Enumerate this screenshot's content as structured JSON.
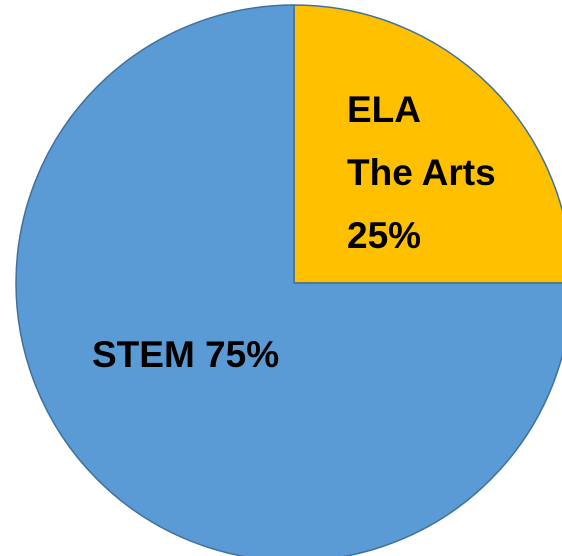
{
  "chart_data": {
    "type": "pie",
    "title": "",
    "slices": [
      {
        "name": "ELA The Arts",
        "value": 25,
        "label_lines": [
          "ELA",
          "The Arts",
          "25%"
        ],
        "color": "#FFC000"
      },
      {
        "name": "STEM",
        "value": 75,
        "label_lines": [
          "STEM 75%"
        ],
        "color": "#5B9BD5"
      }
    ],
    "start_angle": "12 o'clock",
    "direction": "clockwise",
    "legend": "none",
    "slice_outline_color": "#41719C"
  }
}
